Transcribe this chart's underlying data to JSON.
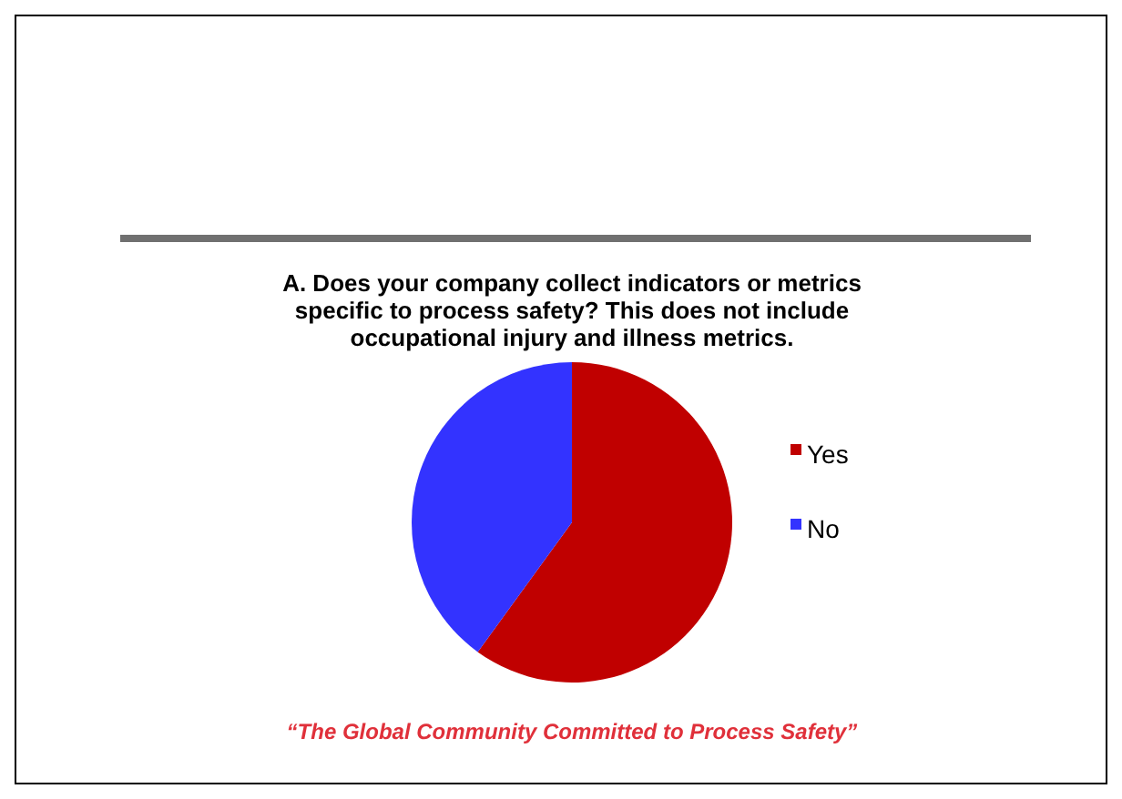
{
  "chart_data": {
    "type": "pie",
    "title": "A. Does your company collect indicators or metrics specific to process safety? This does not include occupational injury and illness metrics.",
    "categories": [
      "Yes",
      "No"
    ],
    "values": [
      60,
      40
    ],
    "colors": [
      "#c00000",
      "#3333ff"
    ],
    "legend": "right",
    "annotations": [
      "“The Global Community Committed to Process Safety”"
    ]
  }
}
